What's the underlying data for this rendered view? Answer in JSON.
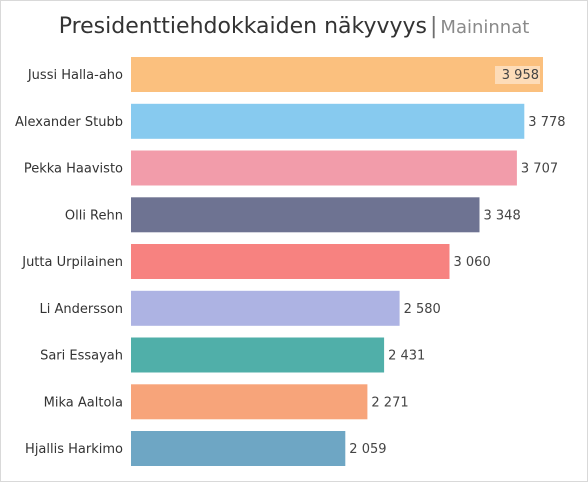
{
  "chart_data": {
    "type": "bar",
    "orientation": "horizontal",
    "title": "Presidenttiehdokkaiden näkyvyys",
    "subtitle": "Maininnat",
    "categories": [
      "Jussi Halla-aho",
      "Alexander Stubb",
      "Pekka Haavisto",
      "Olli Rehn",
      "Jutta Urpilainen",
      "Li Andersson",
      "Sari Essayah",
      "Mika Aaltola",
      "Hjallis Harkimo"
    ],
    "values": [
      3958,
      3778,
      3707,
      3348,
      3060,
      2580,
      2431,
      2271,
      2059
    ],
    "value_labels": [
      "3 958",
      "3 778",
      "3 707",
      "3 348",
      "3 060",
      "2 580",
      "2 431",
      "2 271",
      "2 059"
    ],
    "colors": [
      "#FBC07E",
      "#87CAEF",
      "#F29CAA",
      "#6E7392",
      "#F78280",
      "#ADB3E3",
      "#50AFA9",
      "#F7A47A",
      "#6EA6C4"
    ],
    "xlim": [
      0,
      4000
    ],
    "grid": false,
    "legend": "none"
  }
}
